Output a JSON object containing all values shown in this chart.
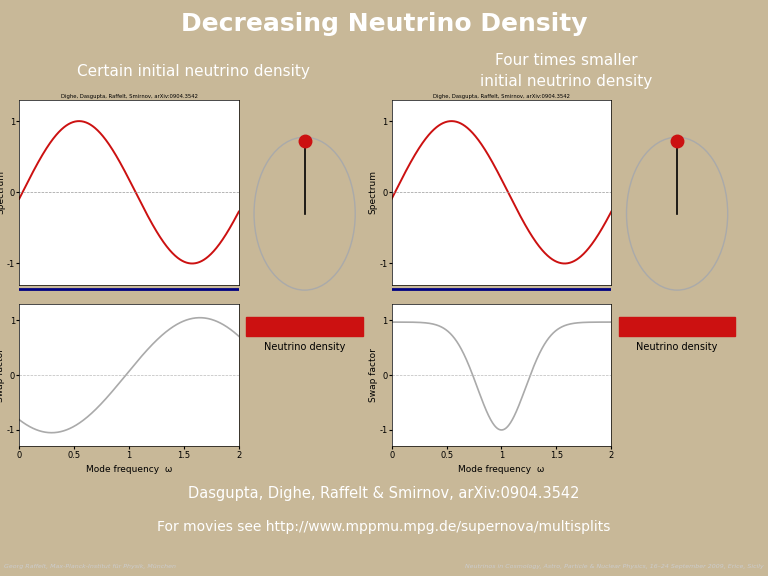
{
  "title": "Decreasing Neutrino Density",
  "title_bg": "#4a78a8",
  "title_color": "white",
  "slide_bg": "#c8b898",
  "panel_bg": "#606060",
  "left_label": "Certain initial neutrino density",
  "right_label": "Four times smaller\ninitial neutrino density",
  "label_color": "white",
  "citation_bg": "#555555",
  "citation_line1": "Dasgupta, Dighe, Raffelt & Smirnov, arXiv:0904.3542",
  "citation_line2": "For movies see http://www.mppmu.mpg.de/supernova/multisplits",
  "citation_color": "white",
  "footer_bg": "#222222",
  "footer_left": "Georg Raffelt, Max-Planck-Institut für Physik, München",
  "footer_right": "Neutrinos in Cosmology, Astro, Particle & Nuclear Physics, 16–24 September 2009, Erice, Sicily",
  "small_text": "Dighe, Dasgupta, Raffelt, Smirnov, arXiv:0904.3542",
  "xlabel": "Mode frequency  ω",
  "ylabel_top": "Spectrum",
  "ylabel_bot": "Swap factor",
  "neutrino_label": "Neutrino density",
  "red_color": "#cc1111",
  "navy_color": "#000080",
  "gray_color": "#aaaaaa",
  "neutrino_bar_color": "#cc1111",
  "circle_color": "#aaaaaa"
}
